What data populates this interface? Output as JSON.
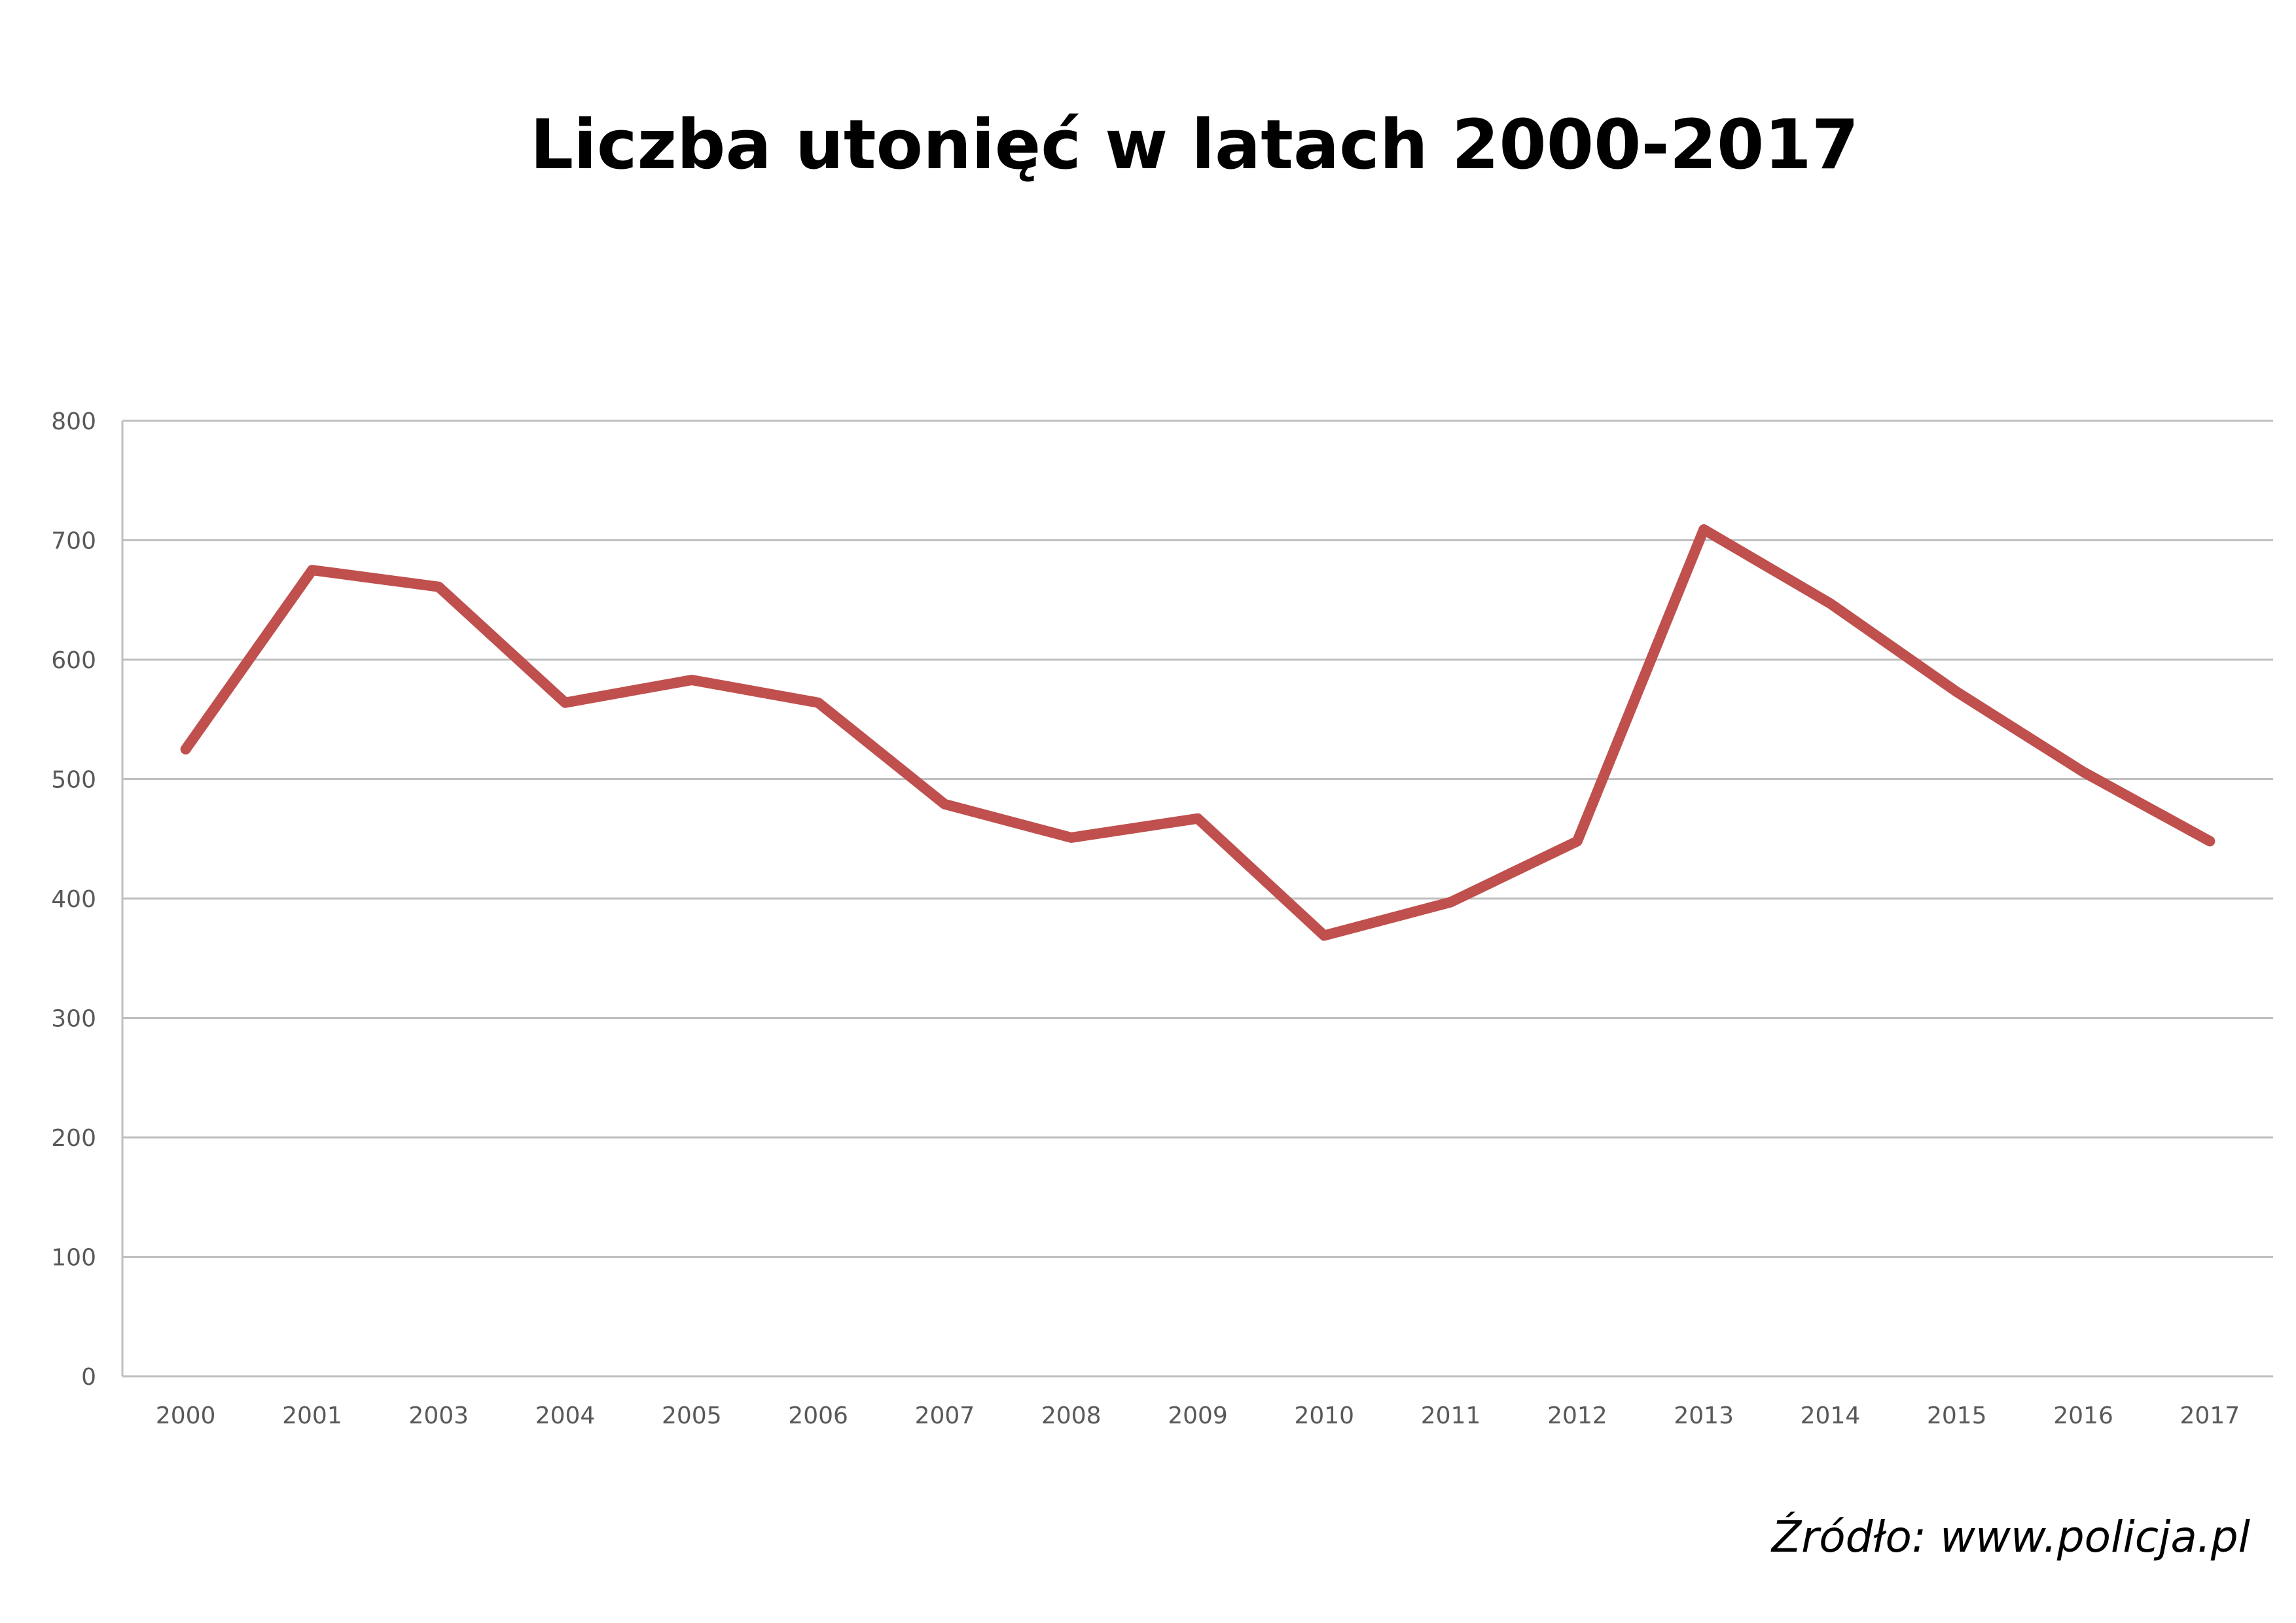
{
  "chart_data": {
    "type": "line",
    "title": "Liczba utonięć w latach 2000-2017",
    "xlabel": "",
    "ylabel": "",
    "categories": [
      "2000",
      "2001",
      "2003",
      "2004",
      "2005",
      "2006",
      "2007",
      "2008",
      "2009",
      "2010",
      "2011",
      "2012",
      "2013",
      "2014",
      "2015",
      "2016",
      "2017"
    ],
    "series": [
      {
        "values": [
          525,
          675,
          661,
          564,
          583,
          564,
          479,
          451,
          467,
          369,
          397,
          448,
          709,
          647,
          573,
          506,
          448
        ]
      }
    ],
    "ylim": [
      0,
      800
    ],
    "yticks": [
      "0",
      "100",
      "200",
      "300",
      "400",
      "500",
      "600",
      "700",
      "800"
    ],
    "grid": true,
    "legend": "none",
    "line_color": "#C0504D",
    "grid_color": "#BFBFBF"
  },
  "source": "Źródło: www.policja.pl"
}
